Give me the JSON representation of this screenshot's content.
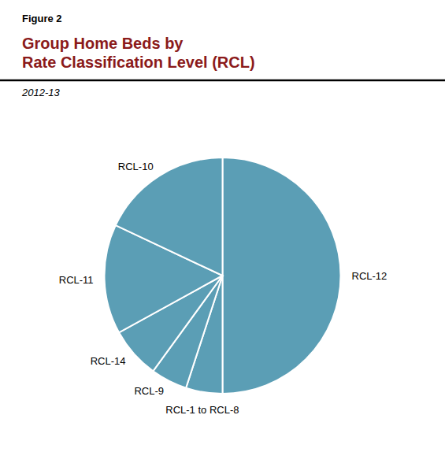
{
  "chart_data": {
    "type": "pie",
    "title": "Group Home Beds by\nRate Classification Level (RCL)",
    "subtitle": "2012-13",
    "annotations": [
      "Figure 2"
    ],
    "categories": [
      "RCL-12",
      "RCL-1 to RCL-8",
      "RCL-9",
      "RCL-14",
      "RCL-11",
      "RCL-10"
    ],
    "values": [
      50,
      5,
      5,
      7,
      15,
      18
    ],
    "color": "#5B9EB5"
  }
}
